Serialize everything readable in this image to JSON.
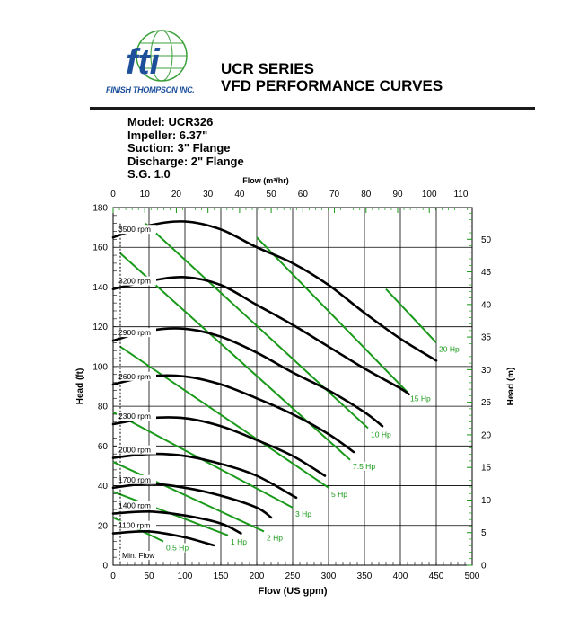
{
  "header": {
    "company": "FINISH THOMPSON INC.",
    "title_line1": "UCR SERIES",
    "title_line2": "VFD PERFORMANCE CURVES",
    "logo_text": "fti"
  },
  "specs": {
    "model": "Model: UCR326",
    "impeller": "Impeller: 6.37\"",
    "suction": "Suction: 3\" Flange",
    "discharge": "Discharge: 2\" Flange",
    "sg": "S.G. 1.0"
  },
  "colors": {
    "rpm_curve": "#000000",
    "hp_curve": "#1a9a1a",
    "grid": "#000000",
    "hp_label": "#1a9a1a"
  },
  "chart_data": {
    "type": "line",
    "xlabel": "Flow (US gpm)",
    "ylabel": "Head (ft)",
    "x2label": "Flow (m³/hr)",
    "y2label": "Head (m)",
    "xlim": [
      0,
      500
    ],
    "ylim": [
      0,
      180
    ],
    "x_ticks": [
      0,
      50,
      100,
      150,
      200,
      250,
      300,
      350,
      400,
      450,
      500
    ],
    "y_ticks": [
      0,
      20,
      40,
      60,
      80,
      100,
      120,
      140,
      160,
      180
    ],
    "x2_ticks": [
      0,
      10,
      20,
      30,
      40,
      50,
      60,
      70,
      80,
      90,
      100,
      110
    ],
    "y2_ticks": [
      0,
      5,
      10,
      15,
      20,
      25,
      30,
      35,
      40,
      45,
      50
    ],
    "grid": true,
    "min_flow_label": "Min. Flow",
    "min_flow_x": 0,
    "rpm_series": [
      {
        "name": "3500 rpm",
        "x": [
          0,
          50,
          100,
          150,
          200,
          250,
          300,
          350,
          400,
          450
        ],
        "y": [
          165,
          171,
          173,
          169,
          160,
          152,
          141,
          127,
          114,
          103
        ]
      },
      {
        "name": "3200 rpm",
        "x": [
          0,
          50,
          100,
          150,
          200,
          250,
          300,
          350,
          400,
          412
        ],
        "y": [
          139,
          143,
          145,
          141,
          131,
          121,
          110,
          99,
          89,
          86
        ]
      },
      {
        "name": "2900 rpm",
        "x": [
          0,
          50,
          100,
          150,
          200,
          250,
          300,
          350,
          375
        ],
        "y": [
          113,
          118,
          119,
          115,
          107,
          97,
          88,
          77,
          70
        ]
      },
      {
        "name": "2600 rpm",
        "x": [
          0,
          50,
          100,
          150,
          200,
          250,
          300,
          335
        ],
        "y": [
          91,
          95,
          95,
          91,
          84,
          76,
          66,
          57
        ]
      },
      {
        "name": "2300 rpm",
        "x": [
          0,
          50,
          100,
          150,
          200,
          250,
          295
        ],
        "y": [
          71,
          74,
          74,
          70,
          63,
          55,
          45
        ]
      },
      {
        "name": "2000 rpm",
        "x": [
          0,
          50,
          100,
          150,
          200,
          255
        ],
        "y": [
          54,
          56,
          55,
          51,
          45,
          34
        ]
      },
      {
        "name": "1700 rpm",
        "x": [
          0,
          50,
          100,
          150,
          200,
          220
        ],
        "y": [
          39,
          41,
          39,
          35,
          29,
          24
        ]
      },
      {
        "name": "1400 rpm",
        "x": [
          0,
          50,
          100,
          150,
          178
        ],
        "y": [
          26,
          27,
          25,
          21,
          16
        ]
      },
      {
        "name": "1100 rpm",
        "x": [
          0,
          50,
          100,
          140
        ],
        "y": [
          16,
          17,
          14,
          10
        ]
      }
    ],
    "hp_series": [
      {
        "name": "0.5 Hp",
        "x": [
          0,
          70
        ],
        "y": [
          24,
          12
        ]
      },
      {
        "name": "1 Hp",
        "x": [
          0,
          160
        ],
        "y": [
          37,
          15
        ]
      },
      {
        "name": "2 Hp",
        "x": [
          0,
          210
        ],
        "y": [
          52,
          17
        ]
      },
      {
        "name": "3 Hp",
        "x": [
          0,
          250
        ],
        "y": [
          77,
          29
        ]
      },
      {
        "name": "5 Hp",
        "x": [
          10,
          300
        ],
        "y": [
          110,
          39
        ]
      },
      {
        "name": "7.5 Hp",
        "x": [
          10,
          330
        ],
        "y": [
          157,
          53
        ]
      },
      {
        "name": "10 Hp",
        "x": [
          45,
          355
        ],
        "y": [
          172,
          69
        ]
      },
      {
        "name": "15 Hp",
        "x": [
          200,
          410
        ],
        "y": [
          165,
          87
        ]
      },
      {
        "name": "20 Hp",
        "x": [
          380,
          450
        ],
        "y": [
          139,
          112
        ]
      }
    ]
  }
}
